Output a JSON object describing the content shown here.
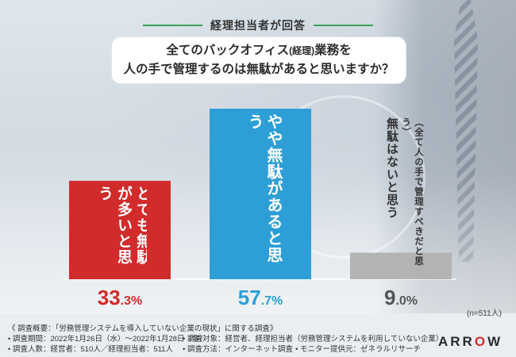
{
  "header": {
    "title": "経理担当者が回答"
  },
  "question": {
    "line1_pre": "全てのバックオフィス",
    "line1_small": "(経理)",
    "line1_post": "業務を",
    "line2": "人の手で管理するのは無駄があると思いますか？"
  },
  "chart_data": {
    "type": "bar",
    "categories": [
      "とても無駄が多いと思う",
      "やや無駄があると思う",
      "無駄はないと思う"
    ],
    "sublabels": [
      "",
      "",
      "（全て人の手で管理すべきだと思う）"
    ],
    "values": [
      33.3,
      57.7,
      9.0
    ],
    "value_labels": [
      {
        "big": "33",
        "small": ".3%"
      },
      {
        "big": "57",
        "small": ".7%"
      },
      {
        "big": "9",
        "small": ".0%"
      }
    ],
    "colors": [
      "#d12b2b",
      "#2e9fd6",
      "#b3b3b3"
    ],
    "label_colors": [
      "#d12b2b",
      "#2e9fd6",
      "#555555"
    ],
    "ylim": [
      0,
      57.7
    ],
    "sample_note": "(n=511人)"
  },
  "footer": {
    "line1": "《 調査概要：「労務管理システムを導入していない企業の現状」に関する調査》",
    "period": "• 調査期間：2022年1月26日（水）〜2022年1月28日（金）",
    "people": "• 調査人数：経営者：510人／経理担当者：511人",
    "target": "• 調査対象：経営者、経理担当者（労務管理システムを利用していない企業）",
    "method": "• 調査方法：インターネット調査",
    "provider": "• モニター提供元：ゼネラルリサーチ"
  },
  "logo": {
    "text_a": "ARR",
    "text_o": "O",
    "text_w": "W"
  }
}
